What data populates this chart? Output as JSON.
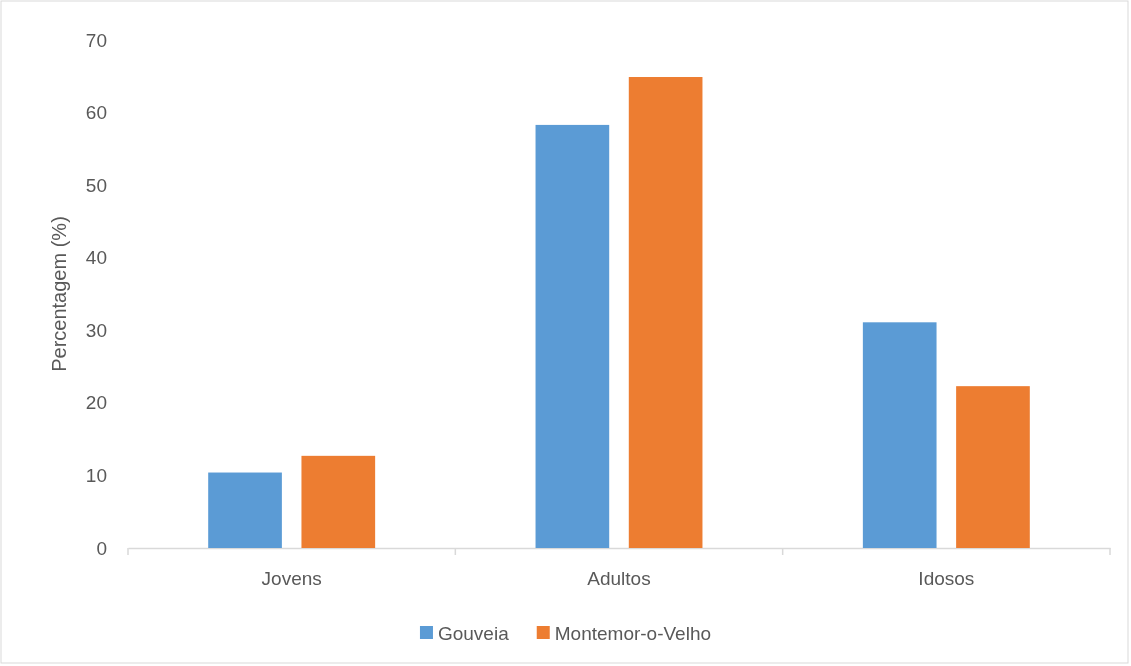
{
  "chart_data": {
    "type": "bar",
    "ylabel": "Percentagem (%)",
    "categories": [
      "Jovens",
      "Adultos",
      "Idosos"
    ],
    "series": [
      {
        "name": "Gouveia",
        "color": "#5b9bd5",
        "values": [
          10.4,
          58.3,
          31.1
        ]
      },
      {
        "name": "Montemor-o-Velho",
        "color": "#ed7d31",
        "values": [
          12.7,
          64.9,
          22.3
        ]
      }
    ],
    "ylim": [
      0,
      70
    ],
    "yticks": [
      0,
      10,
      20,
      30,
      40,
      50,
      60,
      70
    ],
    "legend": "bottom"
  }
}
